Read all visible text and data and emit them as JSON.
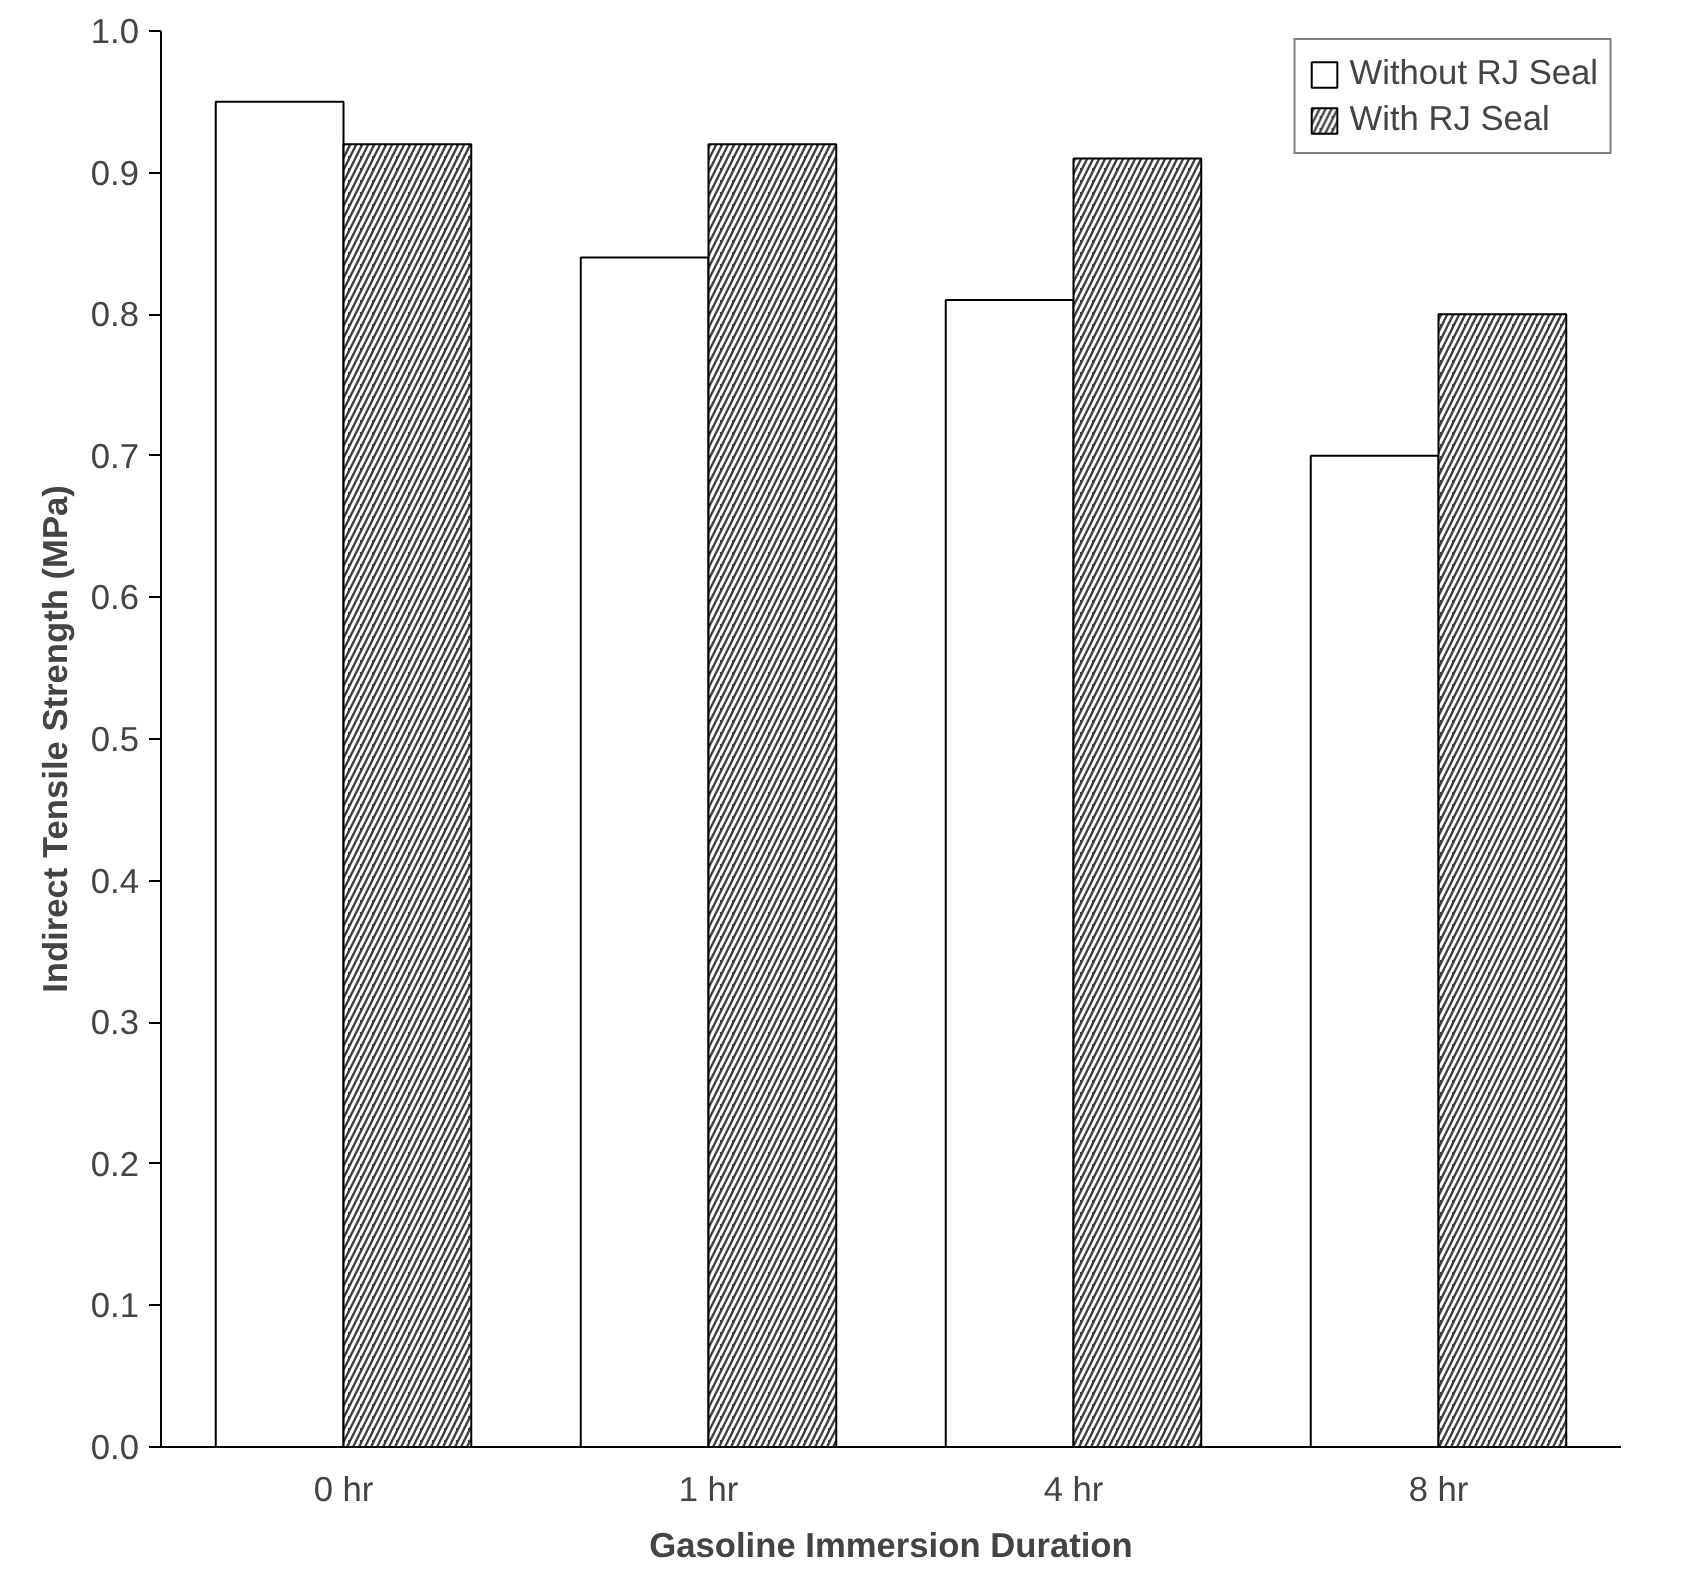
{
  "chart_data": {
    "type": "bar",
    "xlabel": "Gasoline Immersion Duration",
    "ylabel": "Indirect Tensile Strength (MPa)",
    "categories": [
      "0 hr",
      "1 hr",
      "4 hr",
      "8 hr"
    ],
    "series": [
      {
        "name": "Without RJ Seal",
        "color": "#ffffff",
        "values": [
          0.95,
          0.84,
          0.81,
          0.7
        ]
      },
      {
        "name": "With RJ Seal",
        "color": "#404040",
        "values": [
          0.92,
          0.92,
          0.91,
          0.8
        ]
      }
    ],
    "ylim": [
      0,
      1
    ],
    "yticks": [
      {
        "value": 0,
        "label": "0.0"
      },
      {
        "value": 0.1,
        "label": "0.1"
      },
      {
        "value": 0.2,
        "label": "0.2"
      },
      {
        "value": 0.3,
        "label": "0.3"
      },
      {
        "value": 0.4,
        "label": "0.4"
      },
      {
        "value": 0.5,
        "label": "0.5"
      },
      {
        "value": 0.6,
        "label": "0.6"
      },
      {
        "value": 0.7,
        "label": "0.7"
      },
      {
        "value": 0.8,
        "label": "0.8"
      },
      {
        "value": 0.9,
        "label": "0.9"
      },
      {
        "value": 1,
        "label": "1.0"
      }
    ],
    "grid": false,
    "legend": "top right"
  }
}
